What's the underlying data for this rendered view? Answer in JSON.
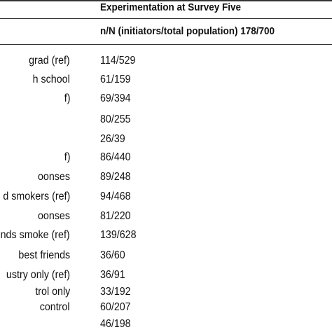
{
  "header": {
    "title": "Experimentation at Survey Five",
    "subtitle": "n/N (initiators/total population) 178/700"
  },
  "table": {
    "rows": [
      {
        "label": "grad (ref)",
        "value": "114/529"
      },
      {
        "label": "h school",
        "value": "61/159"
      },
      {
        "label": "f)",
        "value": "69/394"
      },
      {
        "label": "",
        "value": "80/255"
      },
      {
        "label": "",
        "value": "26/39"
      },
      {
        "label": "f)",
        "value": "86/440"
      },
      {
        "label": "oonses",
        "value": "89/248"
      },
      {
        "label": "d smokers (ref)",
        "value": "94/468"
      },
      {
        "label": "oonses",
        "value": "81/220"
      },
      {
        "label": "nds smoke (ref)",
        "value": "139/628"
      },
      {
        "label": "best friends",
        "value": "36/60"
      },
      {
        "label": "ustry only (ref)",
        "value": "36/91"
      },
      {
        "label": "trol only",
        "value": "33/192"
      },
      {
        "label": "control",
        "value": "60/207"
      },
      {
        "label": "",
        "value": "46/198"
      }
    ]
  }
}
